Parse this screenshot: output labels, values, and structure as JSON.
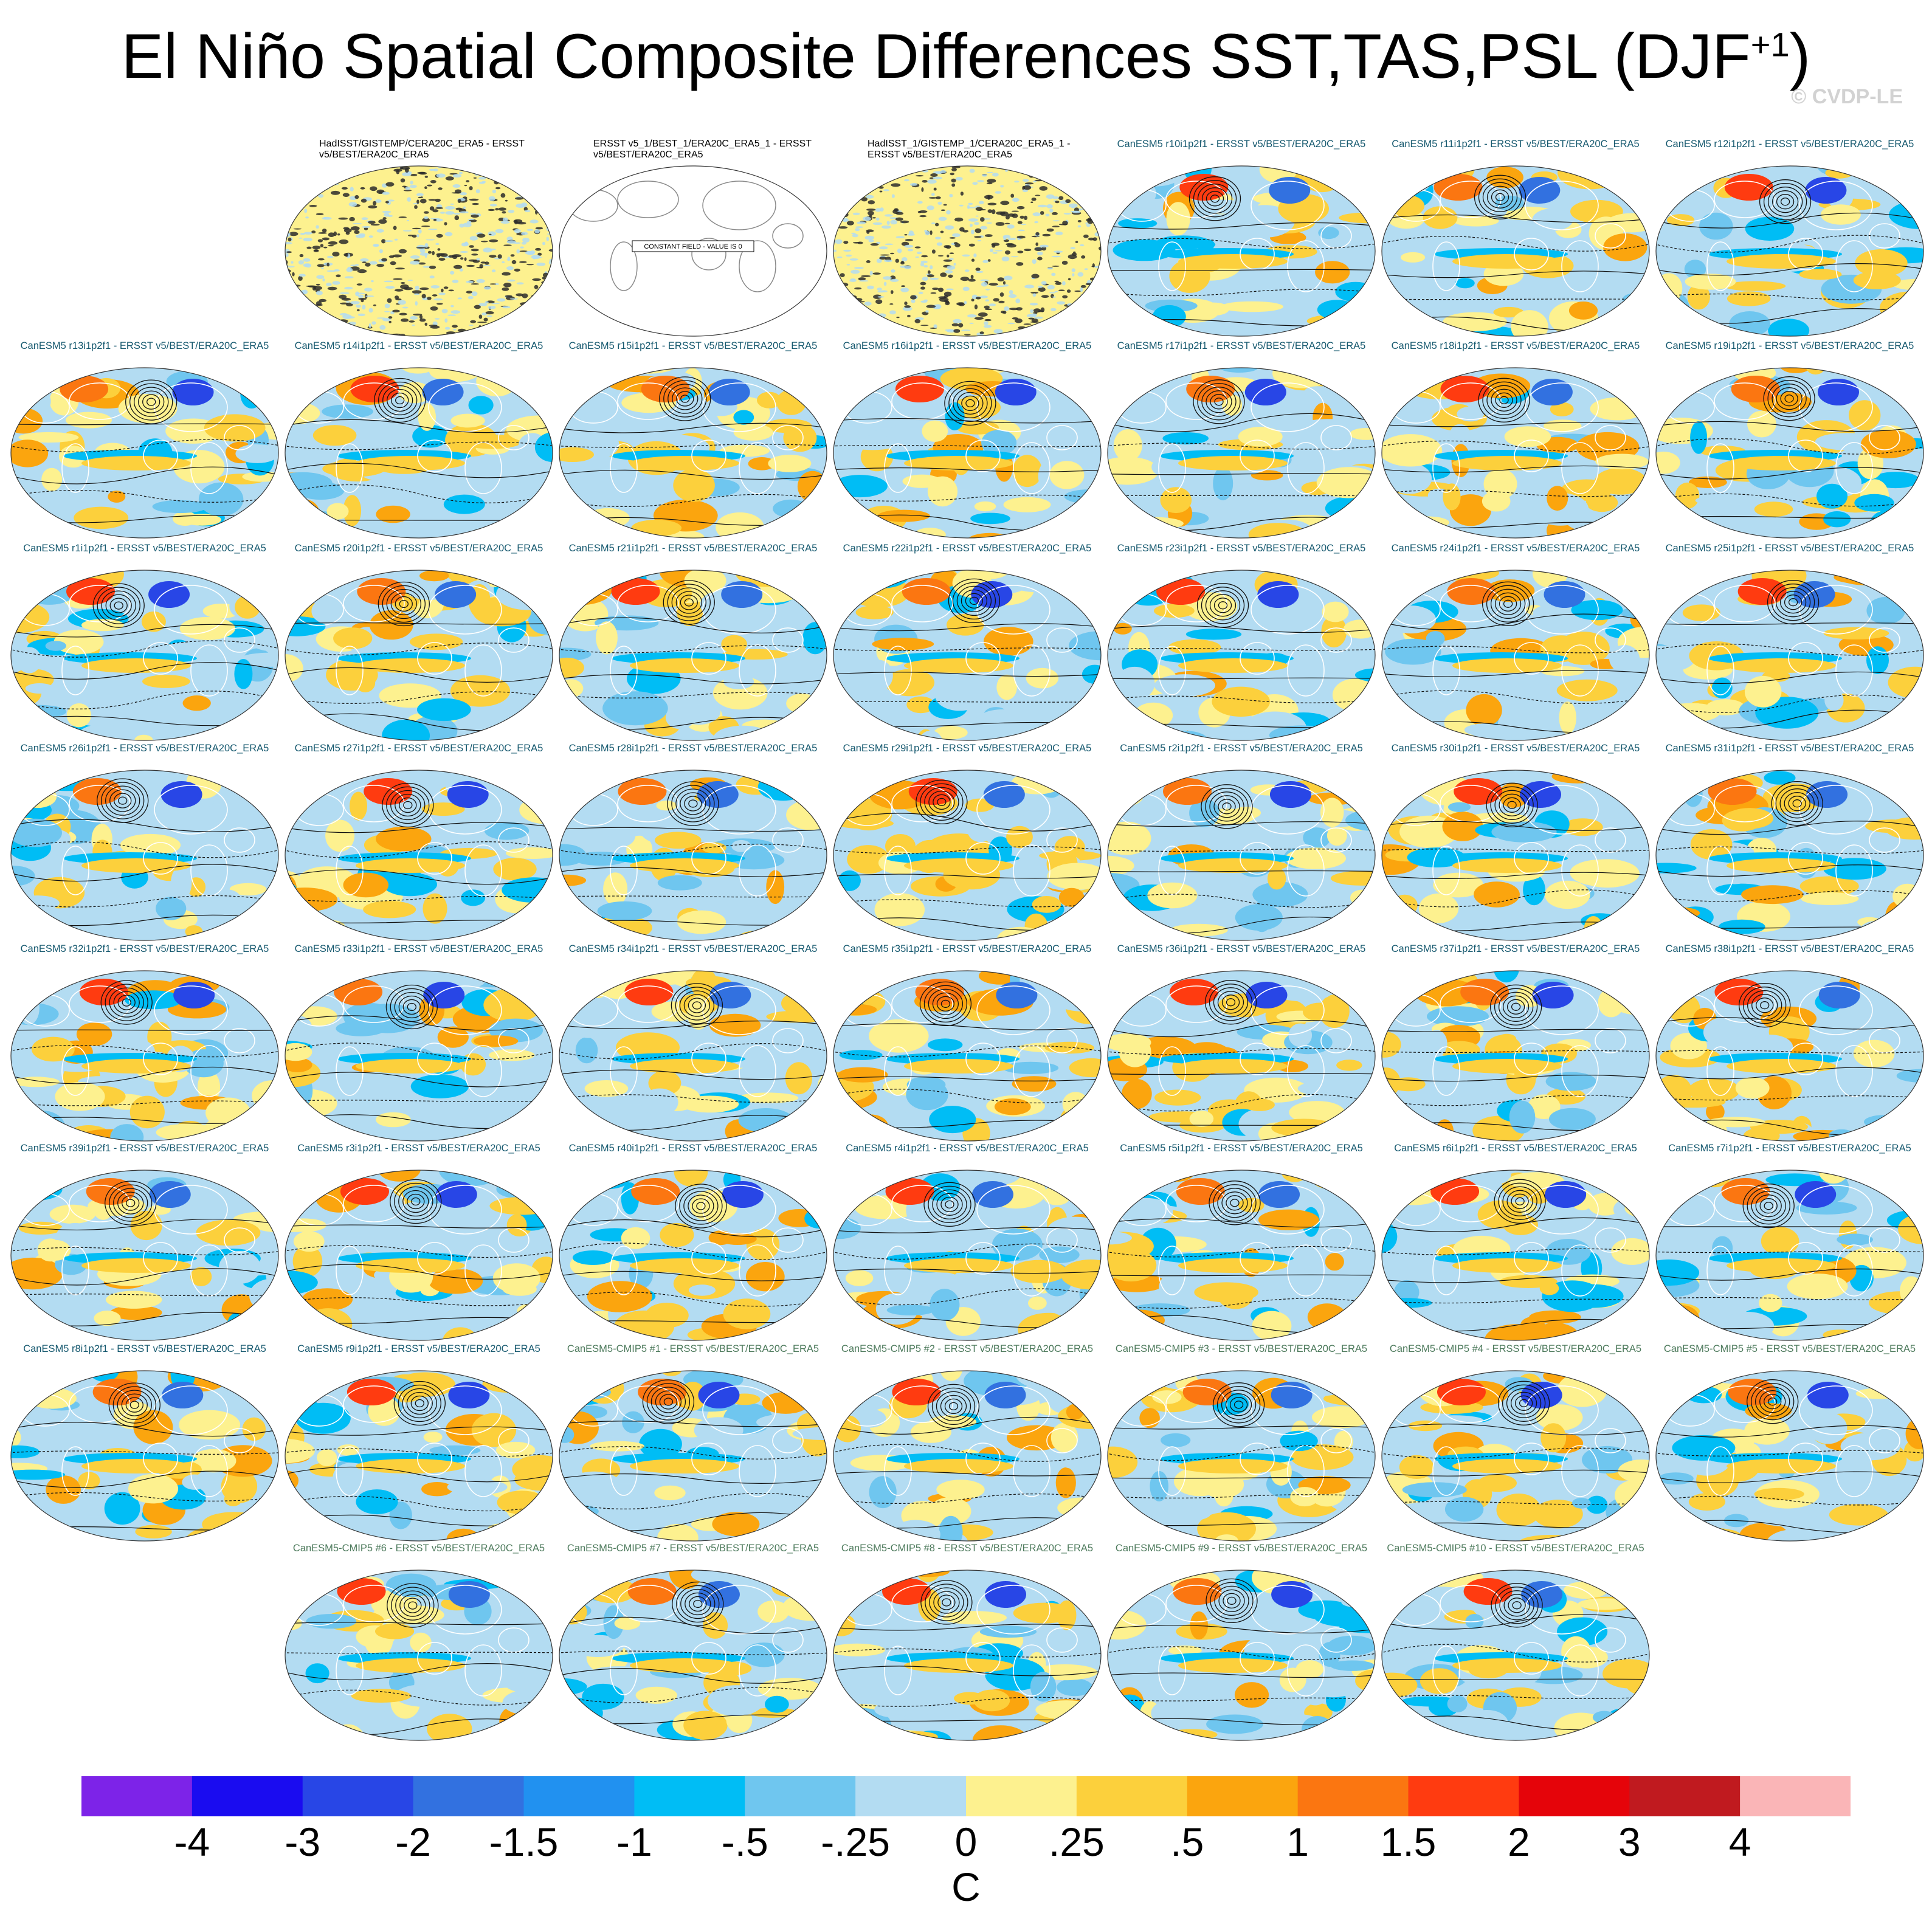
{
  "title": "El Niño Spatial Composite Differences SST,TAS,PSL (DJF",
  "title_superscript": "+1",
  "title_close": ")",
  "copyright": "© CVDP-LE",
  "constant_field_note": "CONSTANT FIELD - VALUE IS 0",
  "panels": [
    [
      {
        "title": "HadISST/GISTEMP/CERA20C_ERA5 - ERSST v5/BEST/ERA20C_ERA5",
        "kind": "obs-noise"
      },
      {
        "title": "ERSST v5_1/BEST_1/ERA20C_ERA5_1 - ERSST v5/BEST/ERA20C_ERA5",
        "kind": "constant"
      },
      {
        "title": "HadISST_1/GISTEMP_1/CERA20C_ERA5_1 - ERSST v5/BEST/ERA20C_ERA5",
        "kind": "obs-noise"
      },
      {
        "title": "CanESM5 r10i1p2f1 - ERSST v5/BEST/ERA20C_ERA5",
        "kind": "model"
      },
      {
        "title": "CanESM5 r11i1p2f1 - ERSST v5/BEST/ERA20C_ERA5",
        "kind": "model"
      },
      {
        "title": "CanESM5 r12i1p2f1 - ERSST v5/BEST/ERA20C_ERA5",
        "kind": "model"
      }
    ],
    [
      {
        "title": "CanESM5 r13i1p2f1 - ERSST v5/BEST/ERA20C_ERA5",
        "kind": "model"
      },
      {
        "title": "CanESM5 r14i1p2f1 - ERSST v5/BEST/ERA20C_ERA5",
        "kind": "model"
      },
      {
        "title": "CanESM5 r15i1p2f1 - ERSST v5/BEST/ERA20C_ERA5",
        "kind": "model"
      },
      {
        "title": "CanESM5 r16i1p2f1 - ERSST v5/BEST/ERA20C_ERA5",
        "kind": "model"
      },
      {
        "title": "CanESM5 r17i1p2f1 - ERSST v5/BEST/ERA20C_ERA5",
        "kind": "model"
      },
      {
        "title": "CanESM5 r18i1p2f1 - ERSST v5/BEST/ERA20C_ERA5",
        "kind": "model"
      },
      {
        "title": "CanESM5 r19i1p2f1 - ERSST v5/BEST/ERA20C_ERA5",
        "kind": "model"
      }
    ],
    [
      {
        "title": "CanESM5 r1i1p2f1 - ERSST v5/BEST/ERA20C_ERA5",
        "kind": "model"
      },
      {
        "title": "CanESM5 r20i1p2f1 - ERSST v5/BEST/ERA20C_ERA5",
        "kind": "model"
      },
      {
        "title": "CanESM5 r21i1p2f1 - ERSST v5/BEST/ERA20C_ERA5",
        "kind": "model"
      },
      {
        "title": "CanESM5 r22i1p2f1 - ERSST v5/BEST/ERA20C_ERA5",
        "kind": "model"
      },
      {
        "title": "CanESM5 r23i1p2f1 - ERSST v5/BEST/ERA20C_ERA5",
        "kind": "model"
      },
      {
        "title": "CanESM5 r24i1p2f1 - ERSST v5/BEST/ERA20C_ERA5",
        "kind": "model"
      },
      {
        "title": "CanESM5 r25i1p2f1 - ERSST v5/BEST/ERA20C_ERA5",
        "kind": "model"
      }
    ],
    [
      {
        "title": "CanESM5 r26i1p2f1 - ERSST v5/BEST/ERA20C_ERA5",
        "kind": "model"
      },
      {
        "title": "CanESM5 r27i1p2f1 - ERSST v5/BEST/ERA20C_ERA5",
        "kind": "model"
      },
      {
        "title": "CanESM5 r28i1p2f1 - ERSST v5/BEST/ERA20C_ERA5",
        "kind": "model"
      },
      {
        "title": "CanESM5 r29i1p2f1 - ERSST v5/BEST/ERA20C_ERA5",
        "kind": "model"
      },
      {
        "title": "CanESM5 r2i1p2f1 - ERSST v5/BEST/ERA20C_ERA5",
        "kind": "model"
      },
      {
        "title": "CanESM5 r30i1p2f1 - ERSST v5/BEST/ERA20C_ERA5",
        "kind": "model"
      },
      {
        "title": "CanESM5 r31i1p2f1 - ERSST v5/BEST/ERA20C_ERA5",
        "kind": "model"
      }
    ],
    [
      {
        "title": "CanESM5 r32i1p2f1 - ERSST v5/BEST/ERA20C_ERA5",
        "kind": "model"
      },
      {
        "title": "CanESM5 r33i1p2f1 - ERSST v5/BEST/ERA20C_ERA5",
        "kind": "model"
      },
      {
        "title": "CanESM5 r34i1p2f1 - ERSST v5/BEST/ERA20C_ERA5",
        "kind": "model"
      },
      {
        "title": "CanESM5 r35i1p2f1 - ERSST v5/BEST/ERA20C_ERA5",
        "kind": "model"
      },
      {
        "title": "CanESM5 r36i1p2f1 - ERSST v5/BEST/ERA20C_ERA5",
        "kind": "model"
      },
      {
        "title": "CanESM5 r37i1p2f1 - ERSST v5/BEST/ERA20C_ERA5",
        "kind": "model"
      },
      {
        "title": "CanESM5 r38i1p2f1 - ERSST v5/BEST/ERA20C_ERA5",
        "kind": "model"
      }
    ],
    [
      {
        "title": "CanESM5 r39i1p2f1 - ERSST v5/BEST/ERA20C_ERA5",
        "kind": "model"
      },
      {
        "title": "CanESM5 r3i1p2f1 - ERSST v5/BEST/ERA20C_ERA5",
        "kind": "model"
      },
      {
        "title": "CanESM5 r40i1p2f1 - ERSST v5/BEST/ERA20C_ERA5",
        "kind": "model"
      },
      {
        "title": "CanESM5 r4i1p2f1 - ERSST v5/BEST/ERA20C_ERA5",
        "kind": "model"
      },
      {
        "title": "CanESM5 r5i1p2f1 - ERSST v5/BEST/ERA20C_ERA5",
        "kind": "model"
      },
      {
        "title": "CanESM5 r6i1p2f1 - ERSST v5/BEST/ERA20C_ERA5",
        "kind": "model"
      },
      {
        "title": "CanESM5 r7i1p2f1 - ERSST v5/BEST/ERA20C_ERA5",
        "kind": "model"
      }
    ],
    [
      {
        "title": "CanESM5 r8i1p2f1 - ERSST v5/BEST/ERA20C_ERA5",
        "kind": "model"
      },
      {
        "title": "CanESM5 r9i1p2f1 - ERSST v5/BEST/ERA20C_ERA5",
        "kind": "model"
      },
      {
        "title": "CanESM5-CMIP5 #1 - ERSST v5/BEST/ERA20C_ERA5",
        "kind": "cmip"
      },
      {
        "title": "CanESM5-CMIP5 #2 - ERSST v5/BEST/ERA20C_ERA5",
        "kind": "cmip"
      },
      {
        "title": "CanESM5-CMIP5 #3 - ERSST v5/BEST/ERA20C_ERA5",
        "kind": "cmip"
      },
      {
        "title": "CanESM5-CMIP5 #4 - ERSST v5/BEST/ERA20C_ERA5",
        "kind": "cmip"
      },
      {
        "title": "CanESM5-CMIP5 #5 - ERSST v5/BEST/ERA20C_ERA5",
        "kind": "cmip"
      }
    ],
    [
      {
        "title": "CanESM5-CMIP5 #6 - ERSST v5/BEST/ERA20C_ERA5",
        "kind": "cmip"
      },
      {
        "title": "CanESM5-CMIP5 #7 - ERSST v5/BEST/ERA20C_ERA5",
        "kind": "cmip"
      },
      {
        "title": "CanESM5-CMIP5 #8 - ERSST v5/BEST/ERA20C_ERA5",
        "kind": "cmip"
      },
      {
        "title": "CanESM5-CMIP5 #9 - ERSST v5/BEST/ERA20C_ERA5",
        "kind": "cmip"
      },
      {
        "title": "CanESM5-CMIP5 #10 - ERSST v5/BEST/ERA20C_ERA5",
        "kind": "cmip"
      }
    ]
  ],
  "colorbar": {
    "unit": "C",
    "labels": [
      "-4",
      "-3",
      "-2",
      "-1.5",
      "-1",
      "-.5",
      "-.25",
      "0",
      ".25",
      ".5",
      "1",
      "1.5",
      "2",
      "3",
      "4"
    ],
    "colors": [
      "#7d23e8",
      "#1a0cf0",
      "#2846e6",
      "#3271e0",
      "#2191f0",
      "#00bdf5",
      "#6fc6ef",
      "#b3dcf2",
      "#fdf18f",
      "#fcd03c",
      "#fba50e",
      "#fb7611",
      "#ff3b10",
      "#e5040a",
      "#c01a1f",
      "#fab5b7"
    ]
  }
}
